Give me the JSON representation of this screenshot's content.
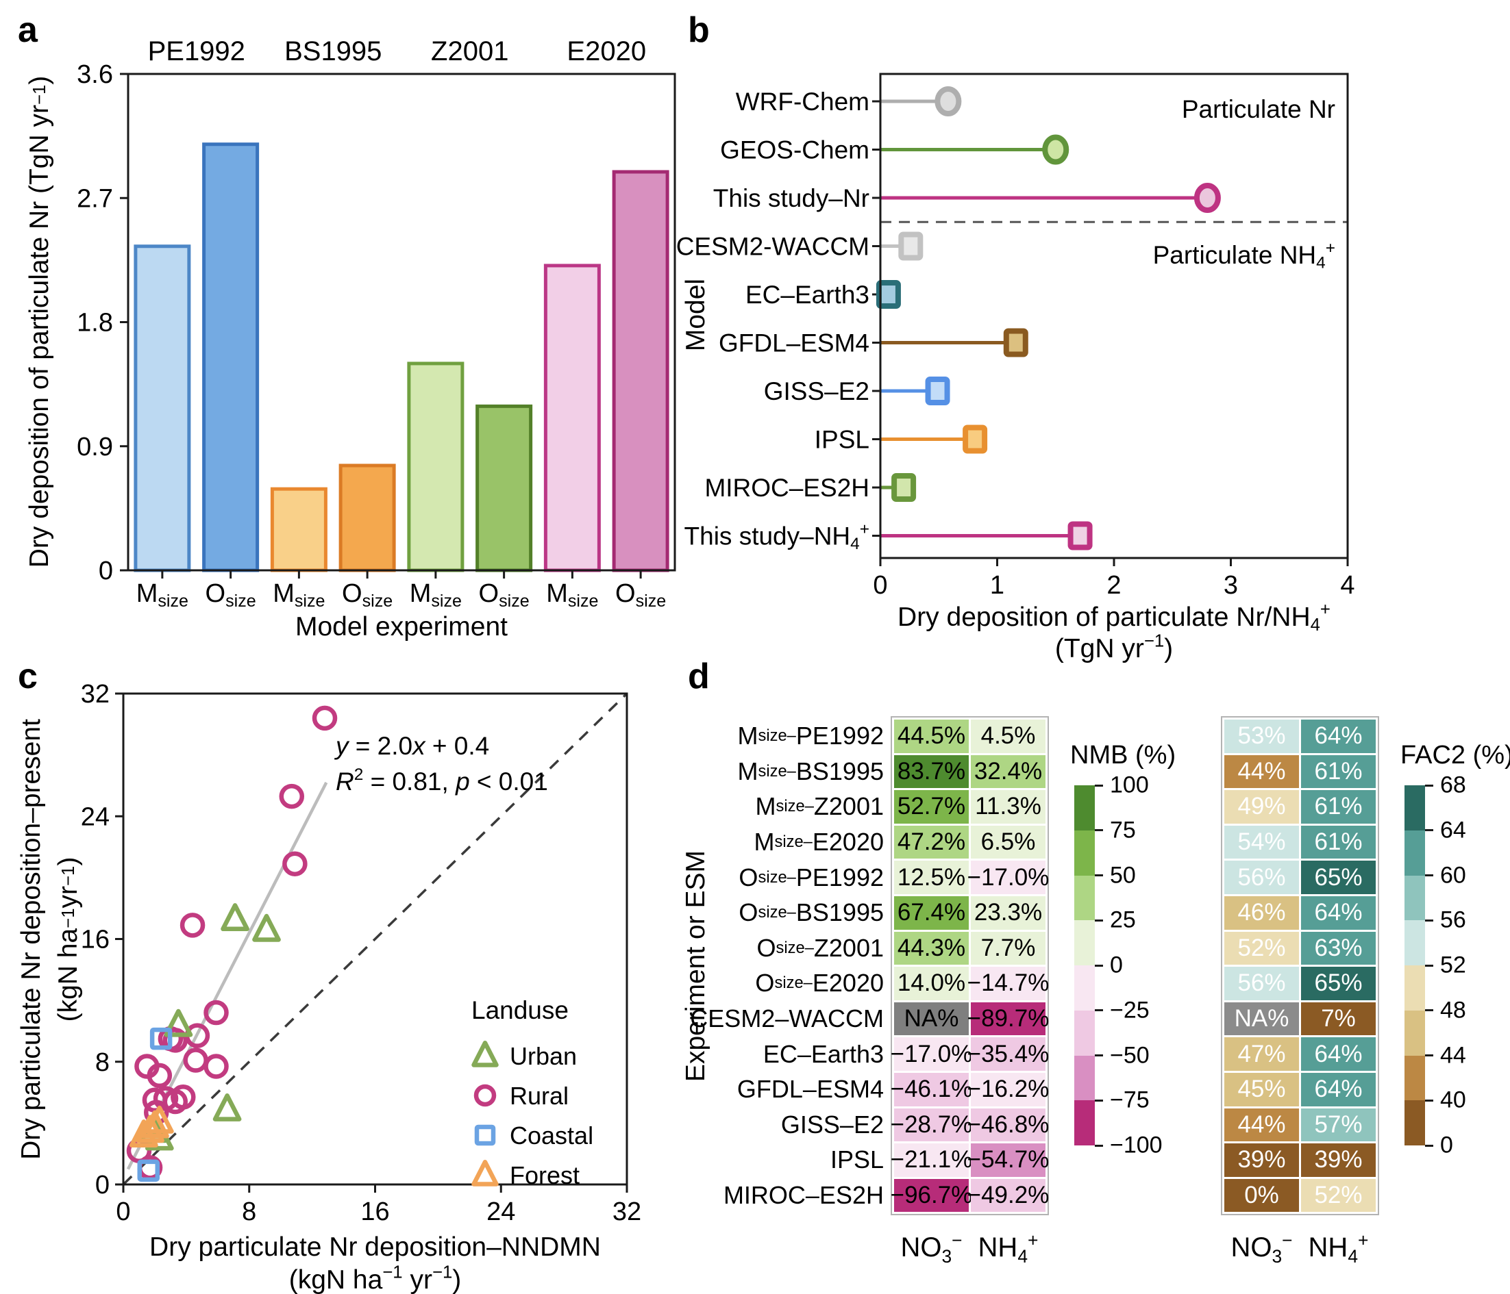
{
  "panel_labels": {
    "a": "a",
    "b": "b",
    "c": "c",
    "d": "d"
  },
  "chart_data": [
    {
      "panel": "a",
      "type": "bar",
      "ylabel": "Dry deposition of particulate Nr (TgN yr^{−1})",
      "xlabel": "Model experiment",
      "ylim": [
        0,
        3.6
      ],
      "yticks": [
        "0",
        "0.9",
        "1.8",
        "2.7",
        "3.6"
      ],
      "bar_tick_labels": [
        "M_{size}",
        "O_{size}"
      ],
      "groups": [
        {
          "name": "PE1992",
          "bars": [
            {
              "label": "M_{size}",
              "value": 2.35,
              "fill": "#bcd9f2",
              "stroke": "#4d87c7"
            },
            {
              "label": "O_{size}",
              "value": 3.09,
              "fill": "#74aae2",
              "stroke": "#3a74bd"
            }
          ]
        },
        {
          "name": "BS1995",
          "bars": [
            {
              "label": "M_{size}",
              "value": 0.59,
              "fill": "#f9d089",
              "stroke": "#e9882f"
            },
            {
              "label": "O_{size}",
              "value": 0.76,
              "fill": "#f4a84e",
              "stroke": "#db7b25"
            }
          ]
        },
        {
          "name": "Z2001",
          "bars": [
            {
              "label": "M_{size}",
              "value": 1.5,
              "fill": "#d4e8b0",
              "stroke": "#70a040"
            },
            {
              "label": "O_{size}",
              "value": 1.19,
              "fill": "#99c368",
              "stroke": "#538029"
            }
          ]
        },
        {
          "name": "E2020",
          "bars": [
            {
              "label": "M_{size}",
              "value": 2.21,
              "fill": "#f2cfe7",
              "stroke": "#bb3786"
            },
            {
              "label": "O_{size}",
              "value": 2.89,
              "fill": "#d890bf",
              "stroke": "#a42a72"
            }
          ]
        }
      ]
    },
    {
      "panel": "b",
      "type": "lollipop",
      "ylabel": "Model",
      "xlabel_line1": "Dry deposition of particulate Nr/NH_{4}^{+}",
      "xlabel_line2": "(TgN yr^{−1})",
      "xlim": [
        0,
        4
      ],
      "xticks": [
        "0",
        "1",
        "2",
        "3",
        "4"
      ],
      "section_labels": {
        "top": "Particulate Nr",
        "bottom": "Particulate NH_{4}^{+}"
      },
      "items": [
        {
          "label": "WRF-Chem",
          "value": 0.58,
          "marker": "circle",
          "stroke": "#aeaeae",
          "fill": "#dedede"
        },
        {
          "label": "GEOS-Chem",
          "value": 1.5,
          "marker": "circle",
          "stroke": "#61953b",
          "fill": "#cee5a4"
        },
        {
          "label": "This study–Nr",
          "value": 2.8,
          "marker": "circle",
          "stroke": "#be3382",
          "fill": "#ebc7dd"
        },
        {
          "label": "CESM2-WACCM",
          "value": 0.26,
          "marker": "square",
          "stroke": "#c2c2c2",
          "fill": "#e8e8e8"
        },
        {
          "label": "EC–Earth3",
          "value": 0.07,
          "marker": "square",
          "stroke": "#2a6e78",
          "fill": "#a3cbe0"
        },
        {
          "label": "GFDL–ESM4",
          "value": 1.16,
          "marker": "square",
          "stroke": "#8a5a20",
          "fill": "#dcc080"
        },
        {
          "label": "GISS–E2",
          "value": 0.49,
          "marker": "square",
          "stroke": "#5590e5",
          "fill": "#c2dcf8"
        },
        {
          "label": "IPSL",
          "value": 0.81,
          "marker": "square",
          "stroke": "#e89030",
          "fill": "#f8cc80"
        },
        {
          "label": "MIROC–ES2H",
          "value": 0.2,
          "marker": "square",
          "stroke": "#69973c",
          "fill": "#d2e6ac"
        },
        {
          "label": "This study–NH_{4}^{+}",
          "value": 1.71,
          "marker": "square",
          "stroke": "#be3382",
          "fill": "#efd2e4"
        }
      ],
      "divider_after_index": 2
    },
    {
      "panel": "c",
      "type": "scatter",
      "xlabel_line1": "Dry particulate Nr deposition–NNDMN",
      "xlabel_line2": "(kgN ha^{−1} yr^{−1})",
      "ylabel_line1": "Dry particulate Nr deposition–present",
      "ylabel_line2": "(kgN ha^{−1} yr^{−1})",
      "xlim": [
        0,
        32
      ],
      "ylim": [
        0,
        32
      ],
      "xticks": [
        "0",
        "8",
        "16",
        "24",
        "32"
      ],
      "yticks": [
        "0",
        "8",
        "16",
        "24",
        "32"
      ],
      "fit_label_line1": "*y* = 2.0*x* + 0.4",
      "fit_label_line2": "*R*^{2} = 0.81, *p* < 0.01",
      "fit_line": {
        "x1": 0.3,
        "y1": 1.0,
        "x2": 12.9,
        "y2": 26.2,
        "color": "#bcbcbc"
      },
      "identity_line": {
        "color": "#3a3a3a"
      },
      "legend": {
        "title": "Landuse",
        "items": [
          {
            "label": "Urban",
            "marker": "triangle",
            "color": "#85aa57"
          },
          {
            "label": "Rural",
            "marker": "circle",
            "color": "#c23b80"
          },
          {
            "label": "Coastal",
            "marker": "square",
            "color": "#6ba3e3"
          },
          {
            "label": "Forest",
            "marker": "triangle",
            "color": "#f2a457"
          }
        ]
      },
      "series": [
        {
          "name": "Rural",
          "marker": "circle",
          "color": "#c23b80",
          "points": [
            [
              12.8,
              30.4
            ],
            [
              10.7,
              25.3
            ],
            [
              10.9,
              20.9
            ],
            [
              4.4,
              16.9
            ],
            [
              5.9,
              11.2
            ],
            [
              4.7,
              9.7
            ],
            [
              3.0,
              9.5
            ],
            [
              3.3,
              9.4
            ],
            [
              4.6,
              8.1
            ],
            [
              5.9,
              7.7
            ],
            [
              1.5,
              7.7
            ],
            [
              2.3,
              7.1
            ],
            [
              2.0,
              5.5
            ],
            [
              2.7,
              5.6
            ],
            [
              3.3,
              5.4
            ],
            [
              3.8,
              5.7
            ],
            [
              2.1,
              4.7
            ],
            [
              1.0,
              2.2
            ],
            [
              1.7,
              1.1
            ]
          ]
        },
        {
          "name": "Urban",
          "marker": "triangle",
          "color": "#85aa57",
          "points": [
            [
              7.1,
              17.3
            ],
            [
              9.1,
              16.6
            ],
            [
              3.5,
              10.4
            ],
            [
              6.6,
              4.9
            ],
            [
              1.9,
              3.5
            ],
            [
              2.3,
              3.0
            ]
          ]
        },
        {
          "name": "Coastal",
          "marker": "square",
          "color": "#6ba3e3",
          "points": [
            [
              2.4,
              9.5
            ],
            [
              1.6,
              0.9
            ]
          ]
        },
        {
          "name": "Forest",
          "marker": "triangle",
          "color": "#f2a457",
          "points": [
            [
              1.3,
              3.2
            ],
            [
              1.7,
              3.5
            ],
            [
              2.0,
              3.8
            ],
            [
              2.3,
              4.1
            ]
          ]
        }
      ]
    },
    {
      "panel": "d",
      "type": "heatmap-pair",
      "ylabel": "Experiment or ESM",
      "rows": [
        "M_{size–}PE1992",
        "M_{size–}BS1995",
        "M_{size–}Z2001",
        "M_{size–}E2020",
        "O_{size–}PE1992",
        "O_{size–}BS1995",
        "O_{size–}Z2001",
        "O_{size–}E2020",
        "CESM2–WACCM",
        "EC–Earth3",
        "GFDL–ESM4",
        "GISS–E2",
        "IPSL",
        "MIROC–ES2H"
      ],
      "columns": [
        "NO_{3}^{−}",
        "NH_{4}^{+}"
      ],
      "nmb": {
        "title": "NMB (%)",
        "text_color": "#000000",
        "values": [
          [
            "44.5%",
            "4.5%"
          ],
          [
            "83.7%",
            "32.4%"
          ],
          [
            "52.7%",
            "11.3%"
          ],
          [
            "47.2%",
            "6.5%"
          ],
          [
            "12.5%",
            "−17.0%"
          ],
          [
            "67.4%",
            "23.3%"
          ],
          [
            "44.3%",
            "7.7%"
          ],
          [
            "14.0%",
            "−14.7%"
          ],
          [
            "NA%",
            "−89.7%"
          ],
          [
            "−17.0%",
            "−35.4%"
          ],
          [
            "−46.1%",
            "−16.2%"
          ],
          [
            "−28.7%",
            "−46.8%"
          ],
          [
            "−21.1%",
            "−54.7%"
          ],
          [
            "−96.7%",
            "−49.2%"
          ]
        ],
        "colors": [
          [
            "#aed684",
            "#e8f2d8"
          ],
          [
            "#4e8b2f",
            "#aed684"
          ],
          [
            "#7db54a",
            "#e8f2d8"
          ],
          [
            "#aed684",
            "#e8f2d8"
          ],
          [
            "#e8f2d8",
            "#f8e7f2"
          ],
          [
            "#7db54a",
            "#e8f2d8"
          ],
          [
            "#aed684",
            "#e8f2d8"
          ],
          [
            "#e8f2d8",
            "#f8e7f2"
          ],
          [
            "#7f7f7f",
            "#b72c79"
          ],
          [
            "#f8e7f2",
            "#efc9e3"
          ],
          [
            "#efc9e3",
            "#f8e7f2"
          ],
          [
            "#efc9e3",
            "#efc9e3"
          ],
          [
            "#f8e7f2",
            "#d98fc2"
          ],
          [
            "#b72c79",
            "#efc9e3"
          ]
        ],
        "colorbar": {
          "ticks": [
            "100",
            "75",
            "50",
            "25",
            "0",
            "−25",
            "−50",
            "−75",
            "−100"
          ],
          "bands": [
            "#4e8b2f",
            "#7db54a",
            "#aed684",
            "#e8f2d8",
            "#f8e7f2",
            "#efc9e3",
            "#d98fc2",
            "#b72c79"
          ]
        }
      },
      "fac2": {
        "title": "FAC2 (%)",
        "text_color": "#ffffff",
        "values": [
          [
            "53%",
            "64%"
          ],
          [
            "44%",
            "61%"
          ],
          [
            "49%",
            "61%"
          ],
          [
            "54%",
            "61%"
          ],
          [
            "56%",
            "65%"
          ],
          [
            "46%",
            "64%"
          ],
          [
            "52%",
            "63%"
          ],
          [
            "56%",
            "65%"
          ],
          [
            "NA%",
            "7%"
          ],
          [
            "47%",
            "64%"
          ],
          [
            "45%",
            "64%"
          ],
          [
            "44%",
            "57%"
          ],
          [
            "39%",
            "39%"
          ],
          [
            "0%",
            "52%"
          ]
        ],
        "colors": [
          [
            "#cce5e2",
            "#569e96"
          ],
          [
            "#bc8844",
            "#569e96"
          ],
          [
            "#ebddb3",
            "#569e96"
          ],
          [
            "#cce5e2",
            "#569e96"
          ],
          [
            "#cce5e2",
            "#2a6b62"
          ],
          [
            "#d9c183",
            "#569e96"
          ],
          [
            "#ebddb3",
            "#569e96"
          ],
          [
            "#cce5e2",
            "#2a6b62"
          ],
          [
            "#8b8b8b",
            "#8b5a24"
          ],
          [
            "#d9c183",
            "#569e96"
          ],
          [
            "#d9c183",
            "#569e96"
          ],
          [
            "#bc8844",
            "#8fc4bd"
          ],
          [
            "#8b5a24",
            "#8b5a24"
          ],
          [
            "#8b5a24",
            "#ebddb3"
          ]
        ],
        "colorbar": {
          "ticks": [
            "68",
            "64",
            "60",
            "56",
            "52",
            "48",
            "44",
            "40",
            "0"
          ],
          "bands": [
            "#2a6b62",
            "#569e96",
            "#8fc4bd",
            "#cce5e2",
            "#ebddb3",
            "#d9c183",
            "#bc8844",
            "#8b5a24"
          ]
        }
      }
    }
  ]
}
